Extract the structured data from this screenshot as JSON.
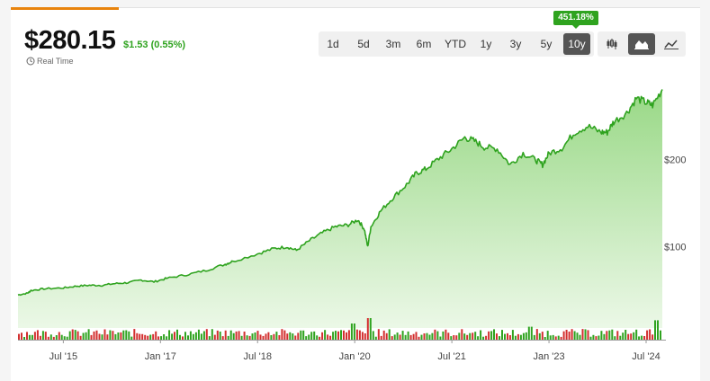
{
  "quote": {
    "price": "$280.15",
    "change": "$1.53 (0.55%)",
    "realtime_label": "Real Time",
    "period_performance": "451.18%"
  },
  "ranges": [
    "1d",
    "5d",
    "3m",
    "6m",
    "YTD",
    "1y",
    "3y",
    "5y",
    "10y"
  ],
  "active_range": "10y",
  "chart_types": [
    "candlestick-icon",
    "area-chart-icon",
    "line-chart-icon"
  ],
  "active_chart_type": "area-chart-icon",
  "colors": {
    "up": "#2fa31f",
    "down": "#d32f2f",
    "accent": "#e8830c"
  },
  "chart_data": {
    "type": "area",
    "title": "",
    "xlabel": "",
    "ylabel": "",
    "x_ticks": [
      "Jul '15",
      "Jan '17",
      "Jul '18",
      "Jan '20",
      "Jul '21",
      "Jan '23",
      "Jul '24"
    ],
    "y_ticks": [
      "$100",
      "$200"
    ],
    "x_range": [
      2014.8,
      2024.75
    ],
    "ylim": [
      0,
      300
    ],
    "grid": false,
    "series": [
      {
        "x": [
          2014.8,
          2014.95,
          2015.0,
          2015.2,
          2015.5,
          2015.7,
          2015.9,
          2016.1,
          2016.3,
          2016.5,
          2016.7,
          2016.9,
          2017.1,
          2017.4,
          2017.7,
          2018.0,
          2018.1,
          2018.5,
          2018.75,
          2018.95,
          2019.1,
          2019.3,
          2019.5,
          2019.7,
          2019.9,
          2020.05,
          2020.15,
          2020.2,
          2020.25,
          2020.4,
          2020.6,
          2020.8,
          2020.95,
          2021.1,
          2021.3,
          2021.5,
          2021.7,
          2021.85,
          2022.0,
          2022.2,
          2022.4,
          2022.6,
          2022.8,
          2022.9,
          2023.0,
          2023.2,
          2023.4,
          2023.6,
          2023.8,
          2023.9,
          2024.0,
          2024.2,
          2024.35,
          2024.5,
          2024.6,
          2024.75
        ],
        "y": [
          45,
          47,
          50,
          52,
          53,
          55,
          56,
          56,
          58,
          59,
          62,
          60,
          64,
          68,
          73,
          80,
          83,
          92,
          98,
          100,
          96,
          107,
          116,
          123,
          125,
          131,
          120,
          100,
          123,
          141,
          157,
          171,
          184,
          189,
          201,
          212,
          225,
          221,
          214,
          212,
          194,
          207,
          199,
          194,
          207,
          213,
          231,
          238,
          231,
          231,
          243,
          253,
          270,
          265,
          262,
          280
        ]
      }
    ],
    "volume": {
      "count": 240,
      "spikes": [
        {
          "x": 2020.2,
          "level": 1.0
        },
        {
          "x": 2024.65,
          "level": 0.9
        },
        {
          "x": 2019.95,
          "level": 0.75
        },
        {
          "x": 2022.7,
          "level": 0.6
        }
      ]
    }
  }
}
